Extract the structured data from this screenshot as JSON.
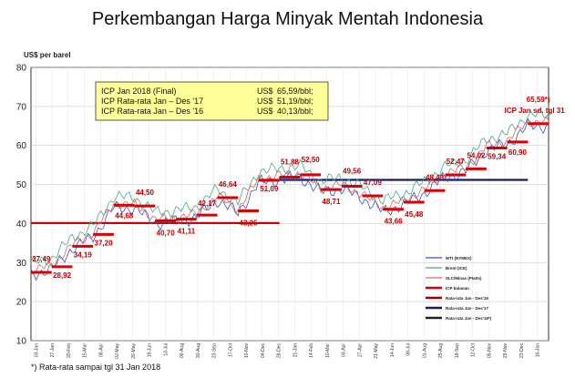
{
  "page": {
    "footnote": "*) Rata-rata sampai tgl 31 Jan 2018"
  },
  "chart_data": {
    "type": "line",
    "title": "Perkembangan Harga Minyak Mentah Indonesia",
    "ylabel": "US$ per barel",
    "ylim": [
      10,
      80
    ],
    "yticks": [
      10,
      20,
      30,
      40,
      50,
      60,
      70,
      80
    ],
    "grid": true,
    "legend_position": "bottom-right",
    "info_box": [
      {
        "label": "ICP Jan 2018 (Final)",
        "unit": "US$",
        "value": "65,59/bbl;"
      },
      {
        "label": "ICP Rata-rata Jan – Des '17",
        "unit": "US$",
        "value": "51,19/bbl;"
      },
      {
        "label": "ICP Rata-rata Jan – Des '16",
        "unit": "US$",
        "value": "40,13/bbl;"
      }
    ],
    "x_ticks": [
      "03-Jan",
      "27-Jan",
      "20-Feb",
      "15-Mar",
      "08-Apr",
      "02-May",
      "26-May",
      "19-Jun",
      "13-Jul",
      "06-Aug",
      "30-Aug",
      "23-Sep",
      "17-Oct",
      "10-Nov",
      "04-Dec",
      "28-Dec",
      "21-Jan",
      "14-Feb",
      "10-Mar",
      "03-Apr",
      "27-Apr",
      "21-May",
      "14-Jun",
      "08-Jul",
      "01-Aug",
      "25-Aug",
      "18-Sep",
      "12-Oct",
      "05-Nov",
      "29-Nov",
      "23-Dec",
      "16-Jan"
    ],
    "series": [
      {
        "name": "WTI (NYMEX)",
        "color": "#3355cc"
      },
      {
        "name": "Brent (ICE)",
        "color": "#44aa88"
      },
      {
        "name": "SLC/Minas (Platts)",
        "color": "#dd6666"
      },
      {
        "name": "ICP bulanan",
        "color": "#dd0000"
      },
      {
        "name": "Rata-rata Jan - Des'16",
        "color": "#990000"
      },
      {
        "name": "Rata-rata Jan - Des'17",
        "color": "#1a1a66"
      },
      {
        "name": "Rata-rata Jan - Des'18*)",
        "color": "#222222"
      }
    ],
    "icp_monthly": [
      {
        "x": 0,
        "value": 27.49,
        "label": "27,49"
      },
      {
        "x": 1,
        "value": 28.92,
        "label": "28,92"
      },
      {
        "x": 2,
        "value": 34.19,
        "label": "34,19"
      },
      {
        "x": 3,
        "value": 37.2,
        "label": "37,20"
      },
      {
        "x": 4,
        "value": 44.68,
        "label": "44,68"
      },
      {
        "x": 5,
        "value": 44.5,
        "label": "44,50"
      },
      {
        "x": 6,
        "value": 40.7,
        "label": "40,70"
      },
      {
        "x": 7,
        "value": 41.11,
        "label": "41,11"
      },
      {
        "x": 8,
        "value": 42.17,
        "label": "42,17"
      },
      {
        "x": 9,
        "value": 46.64,
        "label": "46,64"
      },
      {
        "x": 10,
        "value": 43.25,
        "label": "43,25"
      },
      {
        "x": 11,
        "value": 51.09,
        "label": "51,09"
      },
      {
        "x": 12,
        "value": 51.88,
        "label": "51,88"
      },
      {
        "x": 13,
        "value": 52.5,
        "label": "52,50"
      },
      {
        "x": 14,
        "value": 48.71,
        "label": "48,71"
      },
      {
        "x": 15,
        "value": 49.56,
        "label": "49,56"
      },
      {
        "x": 16,
        "value": 47.09,
        "label": "47,09"
      },
      {
        "x": 17,
        "value": 43.66,
        "label": "43,66"
      },
      {
        "x": 18,
        "value": 45.48,
        "label": "45,48"
      },
      {
        "x": 19,
        "value": 48.43,
        "label": "48,43"
      },
      {
        "x": 20,
        "value": 52.47,
        "label": "52,47"
      },
      {
        "x": 21,
        "value": 54.02,
        "label": "54,02"
      },
      {
        "x": 22,
        "value": 59.34,
        "label": "59,34"
      },
      {
        "x": 23,
        "value": 60.9,
        "label": "60,90"
      },
      {
        "x": 24,
        "value": 65.59,
        "label": "65,59*)"
      }
    ],
    "icp_annotation": "ICP Jan sd. tgl 31",
    "averages": [
      {
        "name": "Rata-rata Jan - Des'16",
        "value": 40.13,
        "x_start": 0,
        "x_end": 12
      },
      {
        "name": "Rata-rata Jan - Des'17",
        "value": 51.19,
        "x_start": 12,
        "x_end": 24
      },
      {
        "name": "Rata-rata Jan - Des'18*)",
        "value": 65.59,
        "x_start": 24,
        "x_end": 25
      }
    ]
  }
}
